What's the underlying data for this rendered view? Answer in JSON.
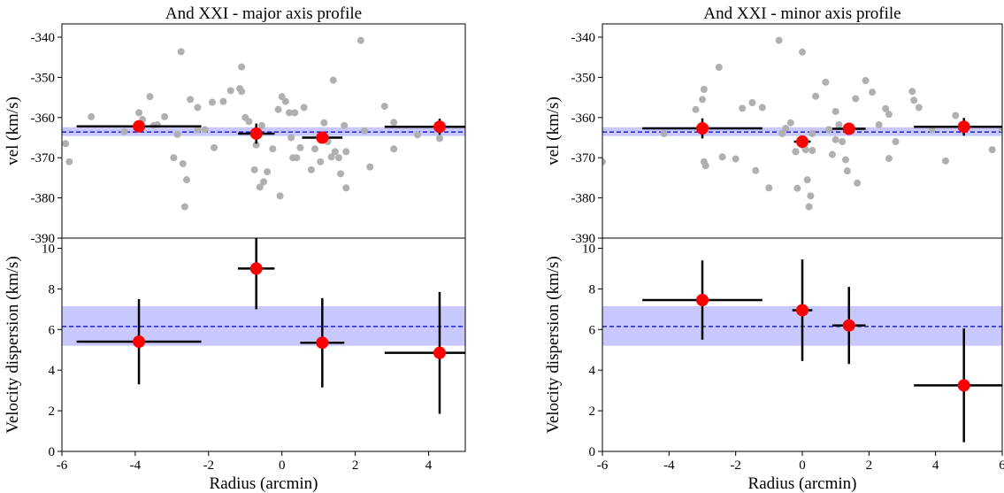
{
  "chart_data": [
    {
      "type": "errorbar",
      "title": "And XXI - major axis profile",
      "y_label": "vel (km/s)",
      "xlim": [
        -6,
        5
      ],
      "ylim": [
        -390,
        -336.7
      ],
      "yticks": [
        -390,
        -380,
        -370,
        -360,
        -350,
        -340
      ],
      "mean": -363.6,
      "band": [
        -364.6,
        -362.4
      ],
      "band_color": "#c8c8ff",
      "mean_color": "#0000cc",
      "scatter": {
        "color": "#b0b0b0",
        "x": [
          -5.9,
          -5.8,
          -5.2,
          -4.3,
          -3.9,
          -3.8,
          -3.6,
          -3.5,
          -3.4,
          -3.2,
          -2.95,
          -2.85,
          -2.75,
          -2.7,
          -2.65,
          -2.6,
          -2.5,
          -2.3,
          -2.3,
          -2.1,
          -1.9,
          -1.85,
          -1.6,
          -1.4,
          -1.15,
          -1.1,
          -1.1,
          -1.0,
          -0.9,
          -0.75,
          -0.7,
          -0.6,
          -0.55,
          -0.5,
          -0.4,
          -0.25,
          -0.1,
          -0.05,
          0,
          0.1,
          0.2,
          0.25,
          0.3,
          0.35,
          0.4,
          0.5,
          0.6,
          0.8,
          0.9,
          1.05,
          1.15,
          1.25,
          1.35,
          1.4,
          1.45,
          1.55,
          1.6,
          1.7,
          1.75,
          1.75,
          2.15,
          2.25,
          2.4,
          2.8,
          3.05,
          3.05,
          3.7,
          4.3
        ],
        "y": [
          -366.5,
          -371,
          -359.8,
          -363.5,
          -358.8,
          -360.5,
          -354.8,
          -362,
          -361.8,
          -359.8,
          -370,
          -364.2,
          -343.6,
          -371.5,
          -382.2,
          -375.5,
          -355.5,
          -357.5,
          -363,
          -363,
          -356.2,
          -367.5,
          -356,
          -353.3,
          -352.8,
          -347.4,
          -353.5,
          -360,
          -361,
          -373,
          -366.8,
          -377.3,
          -362,
          -376,
          -373.5,
          -367.8,
          -358,
          -379.5,
          -354.8,
          -356,
          -358.8,
          -365,
          -370,
          -358.8,
          -370,
          -367.5,
          -357.5,
          -373,
          -367.8,
          -371,
          -361.3,
          -366,
          -369.8,
          -350.7,
          -368.5,
          -370,
          -374,
          -362,
          -368.5,
          -377.5,
          -340.8,
          -363.3,
          -372.3,
          -357.2,
          -361.2,
          -367.8,
          -364.3,
          -365.2
        ]
      },
      "binned": {
        "color": "#ff0000",
        "x": [
          -3.9,
          -0.7,
          1.1,
          4.3
        ],
        "xerr": [
          1.7,
          0.5,
          0.55,
          1.5
        ],
        "y": [
          -362.2,
          -364,
          -365,
          -362.3
        ],
        "yerr": [
          1.2,
          2.5,
          1.2,
          2
        ]
      }
    },
    {
      "type": "errorbar",
      "y_label": "Velocity dispersion (km/s)",
      "x_label": "Radius (arcmin)",
      "xlim": [
        -6,
        5
      ],
      "xticks": [
        -6,
        -4,
        -2,
        0,
        2,
        4
      ],
      "ylim": [
        0,
        10.5
      ],
      "yticks": [
        0,
        2,
        4,
        6,
        8,
        10
      ],
      "mean": 6.15,
      "band": [
        5.2,
        7.15
      ],
      "band_color": "#c8c8ff",
      "mean_color": "#0000cc",
      "binned": {
        "color": "#ff0000",
        "x": [
          -3.9,
          -0.7,
          1.1,
          4.3
        ],
        "xerr": [
          1.7,
          0.5,
          0.6,
          1.5
        ],
        "y": [
          5.4,
          9.0,
          5.35,
          4.85
        ],
        "yerr": [
          2.1,
          2.0,
          2.2,
          3.0
        ]
      }
    },
    {
      "type": "errorbar",
      "title": "And XXI - minor axis profile",
      "y_label": "vel (km/s)",
      "xlim": [
        -6,
        6
      ],
      "ylim": [
        -390,
        -336.7
      ],
      "yticks": [
        -390,
        -380,
        -370,
        -360,
        -350,
        -340
      ],
      "mean": -363.6,
      "band": [
        -364.6,
        -362.4
      ],
      "band_color": "#c8c8ff",
      "mean_color": "#0000cc",
      "scatter": {
        "color": "#b0b0b0",
        "x": [
          -6,
          -4.15,
          -3.2,
          -3.0,
          -2.95,
          -2.95,
          -2.9,
          -2.9,
          -2.5,
          -2.4,
          -2.0,
          -1.8,
          -1.5,
          -1.4,
          -1.2,
          -1.0,
          -0.7,
          -0.5,
          -0.35,
          -0.2,
          -0.15,
          -0.05,
          0,
          0.05,
          0.1,
          0.15,
          0.2,
          0.25,
          0.3,
          0.4,
          0.3,
          0.7,
          0.8,
          0.9,
          1.0,
          1.1,
          1.2,
          1.3,
          1.35,
          1.6,
          1.65,
          1.9,
          2.1,
          2.3,
          2.5,
          2.6,
          2.6,
          2.8,
          3.3,
          3.35,
          3.5,
          3.9,
          4.3,
          4.6,
          5.7,
          6.0,
          1.0,
          -0.6
        ],
        "y": [
          -371,
          -364,
          -358,
          -355.5,
          -353,
          -371,
          -372,
          -362.5,
          -347.5,
          -369.8,
          -370.3,
          -357.7,
          -356.3,
          -373.2,
          -357.5,
          -377.5,
          -340.8,
          -362.7,
          -361.3,
          -368.5,
          -377.6,
          -366,
          -343.7,
          -367.2,
          -368,
          -375.5,
          -382.2,
          -379.5,
          -368.2,
          -354.7,
          -364,
          -351.2,
          -363,
          -369.2,
          -358.5,
          -361.8,
          -366,
          -370.5,
          -373.3,
          -355.3,
          -376.3,
          -350.8,
          -353.7,
          -361.8,
          -357.8,
          -370.2,
          -359.2,
          -366,
          -353.5,
          -355.7,
          -357.5,
          -363,
          -370.8,
          -359.5,
          -368,
          -362.8,
          -365.5,
          -364
        ]
      },
      "binned": {
        "color": "#ff0000",
        "x": [
          -3.0,
          0,
          1.4,
          4.85
        ],
        "xerr": [
          1.8,
          0.25,
          0.5,
          1.5
        ],
        "y": [
          -362.7,
          -366,
          -362.8,
          -362.3
        ],
        "yerr": [
          2.5,
          1.5,
          1.5,
          2.2
        ]
      }
    },
    {
      "type": "errorbar",
      "y_label": "Velocity dispersion (km/s)",
      "x_label": "Radius (arcmin)",
      "xlim": [
        -6,
        6
      ],
      "xticks": [
        -6,
        -4,
        -2,
        0,
        2,
        4,
        6
      ],
      "ylim": [
        0,
        10.5
      ],
      "yticks": [
        0,
        2,
        4,
        6,
        8,
        10
      ],
      "mean": 6.15,
      "band": [
        5.2,
        7.15
      ],
      "band_color": "#c8c8ff",
      "mean_color": "#0000cc",
      "binned": {
        "color": "#ff0000",
        "x": [
          -3.0,
          0,
          1.4,
          4.85
        ],
        "xerr": [
          1.8,
          0.3,
          0.5,
          1.5
        ],
        "y": [
          7.45,
          6.95,
          6.2,
          3.25
        ],
        "yerr": [
          1.95,
          2.5,
          1.9,
          2.8
        ]
      }
    }
  ]
}
